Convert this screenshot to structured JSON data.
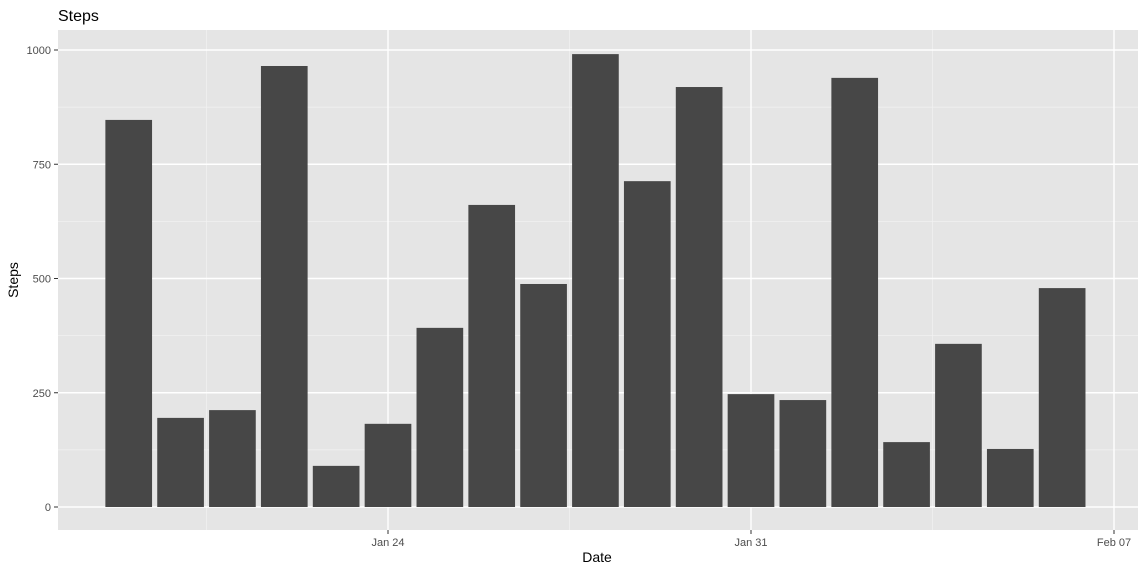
{
  "chart_data": {
    "type": "bar",
    "title": "Steps",
    "xlabel": "Date",
    "ylabel": "Steps",
    "x": [
      "2024-01-19",
      "2024-01-20",
      "2024-01-21",
      "2024-01-22",
      "2024-01-23",
      "2024-01-24",
      "2024-01-25",
      "2024-01-26",
      "2024-01-27",
      "2024-01-28",
      "2024-01-29",
      "2024-01-30",
      "2024-01-31",
      "2024-02-01",
      "2024-02-02",
      "2024-02-03",
      "2024-02-04",
      "2024-02-05",
      "2024-02-06"
    ],
    "values": [
      847,
      195,
      212,
      965,
      90,
      182,
      392,
      661,
      488,
      991,
      713,
      919,
      247,
      234,
      939,
      142,
      357,
      127,
      479
    ],
    "xlim": [
      "2024-01-17",
      "2024-02-07"
    ],
    "ylim": [
      -50,
      1044
    ],
    "x_ticks": [
      {
        "date": "2024-01-24",
        "label": "Jan 24"
      },
      {
        "date": "2024-01-31",
        "label": "Jan 31"
      },
      {
        "date": "2024-02-07",
        "label": "Feb 07"
      }
    ],
    "y_ticks": [
      0,
      250,
      500,
      750,
      1000
    ],
    "grid": true,
    "colors": {
      "bar": "#474747",
      "panel": "#e5e5e5",
      "grid": "#ffffff"
    }
  }
}
